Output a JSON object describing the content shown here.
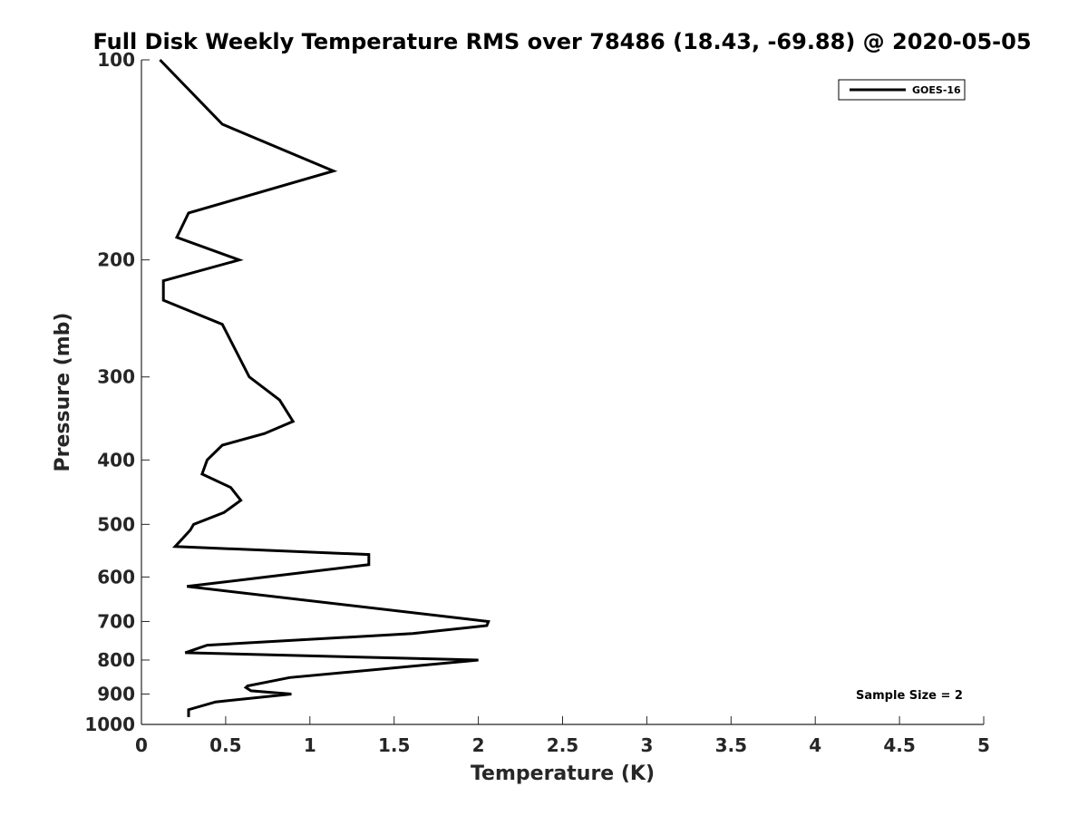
{
  "chart_data": {
    "type": "line",
    "title": "Full Disk Weekly Temperature RMS over 78486 (18.43, -69.88) @ 2020-05-05",
    "xlabel": "Temperature (K)",
    "ylabel": "Pressure (mb)",
    "xlim": [
      0,
      5
    ],
    "ylim": [
      100,
      1000
    ],
    "y_scale": "log",
    "y_reversed": true,
    "x_ticks": [
      "0",
      "0.5",
      "1",
      "1.5",
      "2",
      "2.5",
      "3",
      "3.5",
      "4",
      "4.5",
      "5"
    ],
    "y_ticks": [
      "100",
      "200",
      "300",
      "400",
      "500",
      "600",
      "700",
      "800",
      "900",
      "1000"
    ],
    "grid": false,
    "legend_position": "top-right",
    "series": [
      {
        "name": "GOES-16",
        "color": "#000000",
        "points": [
          {
            "x": 0.11,
            "y": 100
          },
          {
            "x": 0.48,
            "y": 125
          },
          {
            "x": 1.14,
            "y": 147
          },
          {
            "x": 0.28,
            "y": 170
          },
          {
            "x": 0.21,
            "y": 185
          },
          {
            "x": 0.58,
            "y": 200
          },
          {
            "x": 0.13,
            "y": 215
          },
          {
            "x": 0.13,
            "y": 230
          },
          {
            "x": 0.48,
            "y": 250
          },
          {
            "x": 0.64,
            "y": 300
          },
          {
            "x": 0.82,
            "y": 325
          },
          {
            "x": 0.9,
            "y": 350
          },
          {
            "x": 0.73,
            "y": 365
          },
          {
            "x": 0.48,
            "y": 380
          },
          {
            "x": 0.39,
            "y": 400
          },
          {
            "x": 0.36,
            "y": 420
          },
          {
            "x": 0.53,
            "y": 440
          },
          {
            "x": 0.59,
            "y": 460
          },
          {
            "x": 0.49,
            "y": 480
          },
          {
            "x": 0.31,
            "y": 500
          },
          {
            "x": 0.29,
            "y": 510
          },
          {
            "x": 0.2,
            "y": 540
          },
          {
            "x": 1.35,
            "y": 555
          },
          {
            "x": 1.35,
            "y": 575
          },
          {
            "x": 0.27,
            "y": 620
          },
          {
            "x": 2.06,
            "y": 700
          },
          {
            "x": 2.05,
            "y": 710
          },
          {
            "x": 1.61,
            "y": 730
          },
          {
            "x": 0.39,
            "y": 760
          },
          {
            "x": 0.26,
            "y": 780
          },
          {
            "x": 2.0,
            "y": 800
          },
          {
            "x": 0.88,
            "y": 850
          },
          {
            "x": 0.63,
            "y": 875
          },
          {
            "x": 0.62,
            "y": 880
          },
          {
            "x": 0.65,
            "y": 890
          },
          {
            "x": 0.89,
            "y": 900
          },
          {
            "x": 0.44,
            "y": 925
          },
          {
            "x": 0.28,
            "y": 950
          },
          {
            "x": 0.28,
            "y": 975
          }
        ]
      }
    ],
    "annotations": [
      "Sample Size = 2"
    ]
  }
}
